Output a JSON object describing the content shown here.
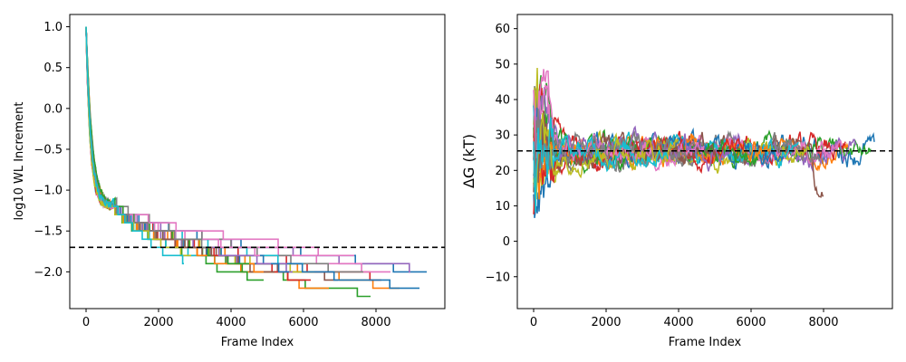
{
  "colors": [
    "#1f77b4",
    "#ff7f0e",
    "#2ca02c",
    "#d62728",
    "#9467bd",
    "#8c564b",
    "#e377c2",
    "#7f7f7f",
    "#bcbd22",
    "#17becf"
  ],
  "chart_data": [
    {
      "type": "line",
      "style": "step",
      "title": "",
      "xlabel": "Frame Index",
      "ylabel": "log10 WL Increment",
      "xlim": [
        -450,
        9900
      ],
      "ylim": [
        -2.45,
        1.15
      ],
      "xticks": [
        0,
        2000,
        4000,
        6000,
        8000
      ],
      "xtick_labels": [
        "0",
        "2000",
        "4000",
        "6000",
        "8000"
      ],
      "yticks": [
        1.0,
        0.5,
        0.0,
        -0.5,
        -1.0,
        -1.5,
        -2.0
      ],
      "ytick_labels": [
        "1.0",
        "0.5",
        "0.0",
        "−0.5",
        "−1.0",
        "−1.5",
        "−2.0"
      ],
      "grid": false,
      "legend": "none",
      "reference_line": {
        "y": -1.7,
        "style": "dashed",
        "color": "#000000"
      },
      "series": [
        {
          "color_index": 0,
          "end_x": 9400,
          "end_y": -2.0
        },
        {
          "color_index": 1,
          "end_x": 8650,
          "end_y": -2.2
        },
        {
          "color_index": 2,
          "end_x": 7850,
          "end_y": -2.3
        },
        {
          "color_index": 3,
          "end_x": 8150,
          "end_y": -2.1
        },
        {
          "color_index": 4,
          "end_x": 8950,
          "end_y": -2.0
        },
        {
          "color_index": 5,
          "end_x": 6950,
          "end_y": -2.1
        },
        {
          "color_index": 6,
          "end_x": 8400,
          "end_y": -2.0
        },
        {
          "color_index": 7,
          "end_x": 7650,
          "end_y": -2.0
        },
        {
          "color_index": 8,
          "end_x": 6300,
          "end_y": -2.0
        },
        {
          "color_index": 9,
          "end_x": 6000,
          "end_y": -1.9
        },
        {
          "color_index": 0,
          "end_x": 9200,
          "end_y": -2.2
        },
        {
          "color_index": 1,
          "end_x": 6700,
          "end_y": -2.2
        },
        {
          "color_index": 2,
          "end_x": 4900,
          "end_y": -2.1
        },
        {
          "color_index": 3,
          "end_x": 6200,
          "end_y": -2.1
        },
        {
          "color_index": 4,
          "end_x": 5700,
          "end_y": -2.0
        },
        {
          "color_index": 5,
          "end_x": 5200,
          "end_y": -2.0
        },
        {
          "color_index": 6,
          "end_x": 7400,
          "end_y": -1.8
        },
        {
          "color_index": 7,
          "end_x": 4300,
          "end_y": -1.9
        },
        {
          "color_index": 8,
          "end_x": 4600,
          "end_y": -1.9
        },
        {
          "color_index": 9,
          "end_x": 3800,
          "end_y": -1.9
        },
        {
          "color_index": 0,
          "end_x": 5600,
          "end_y": -2.0
        },
        {
          "color_index": 1,
          "end_x": 4900,
          "end_y": -2.0
        },
        {
          "color_index": 2,
          "end_x": 4500,
          "end_y": -1.9
        },
        {
          "color_index": 3,
          "end_x": 4000,
          "end_y": -1.8
        },
        {
          "color_index": 4,
          "end_x": 5100,
          "end_y": -1.9
        },
        {
          "color_index": 5,
          "end_x": 3500,
          "end_y": -1.8
        },
        {
          "color_index": 6,
          "end_x": 4800,
          "end_y": -1.8
        },
        {
          "color_index": 7,
          "end_x": 3300,
          "end_y": -1.7
        },
        {
          "color_index": 8,
          "end_x": 2900,
          "end_y": -1.8
        },
        {
          "color_index": 9,
          "end_x": 2700,
          "end_y": -1.9
        }
      ]
    },
    {
      "type": "line",
      "title": "",
      "xlabel": "Frame Index",
      "ylabel": "ΔG (kT)",
      "xlim": [
        -450,
        9900
      ],
      "ylim": [
        -19,
        64
      ],
      "xticks": [
        0,
        2000,
        4000,
        6000,
        8000
      ],
      "xtick_labels": [
        "0",
        "2000",
        "4000",
        "6000",
        "8000"
      ],
      "yticks": [
        60,
        50,
        40,
        30,
        20,
        10,
        0,
        -10
      ],
      "ytick_labels": [
        "60",
        "50",
        "40",
        "30",
        "20",
        "10",
        "0",
        "−10"
      ],
      "grid": false,
      "legend": "none",
      "reference_line": {
        "y": 25.5,
        "style": "dashed",
        "color": "#000000"
      },
      "series": [
        {
          "color_index": 0,
          "end_x": 9400,
          "final_value": 28.5
        },
        {
          "color_index": 1,
          "end_x": 8700,
          "final_value": 27.0
        },
        {
          "color_index": 2,
          "end_x": 9300,
          "final_value": 25.0
        },
        {
          "color_index": 3,
          "end_x": 8600,
          "final_value": 26.5
        },
        {
          "color_index": 4,
          "end_x": 8900,
          "final_value": 27.5
        },
        {
          "color_index": 5,
          "end_x": 8000,
          "final_value": 10.5
        },
        {
          "color_index": 6,
          "end_x": 8500,
          "final_value": 28.0
        },
        {
          "color_index": 7,
          "end_x": 7900,
          "final_value": 24.0
        },
        {
          "color_index": 8,
          "end_x": 7600,
          "final_value": 26.0
        },
        {
          "color_index": 9,
          "end_x": 7300,
          "final_value": 27.0
        },
        {
          "color_index": 0,
          "end_x": 6900,
          "final_value": 23.0
        },
        {
          "color_index": 1,
          "end_x": 6500,
          "final_value": 26.0
        },
        {
          "color_index": 2,
          "end_x": 6200,
          "final_value": 22.0
        },
        {
          "color_index": 3,
          "end_x": 5800,
          "final_value": 27.0
        },
        {
          "color_index": 4,
          "end_x": 5400,
          "final_value": 24.0
        },
        {
          "color_index": 5,
          "end_x": 5000,
          "final_value": 25.0
        },
        {
          "color_index": 6,
          "end_x": 4700,
          "final_value": 26.0
        },
        {
          "color_index": 7,
          "end_x": 4400,
          "final_value": 23.0
        },
        {
          "color_index": 8,
          "end_x": 4000,
          "final_value": 28.0
        },
        {
          "color_index": 9,
          "end_x": 3700,
          "final_value": 24.0
        }
      ]
    }
  ]
}
